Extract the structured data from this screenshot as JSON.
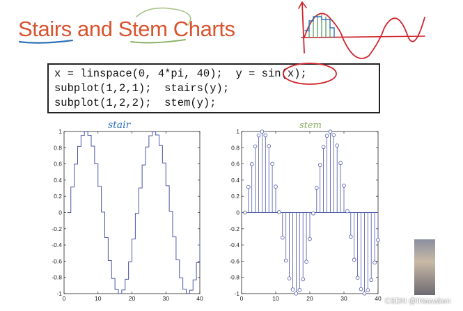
{
  "slide": {
    "title": "Stairs and Stem Charts",
    "code": [
      "x = linspace(0, 4*pi, 40);  y = sin(x);",
      "subplot(1,2,1);  stairs(y);",
      "subplot(1,2,2);  stem(y);"
    ],
    "annotations": {
      "left": "stair",
      "right": "stem"
    },
    "watermark": "CSDN @INawaken"
  },
  "colors": {
    "title": "#d9532e",
    "series": "#4a55a8",
    "ink_blue": "#2f72b8",
    "ink_green": "#8bb36a",
    "ink_red": "#d0242b"
  },
  "chart_data": [
    {
      "type": "line",
      "style": "stairs",
      "x": [
        1,
        2,
        3,
        4,
        5,
        6,
        7,
        8,
        9,
        10,
        11,
        12,
        13,
        14,
        15,
        16,
        17,
        18,
        19,
        20,
        21,
        22,
        23,
        24,
        25,
        26,
        27,
        28,
        29,
        30,
        31,
        32,
        33,
        34,
        35,
        36,
        37,
        38,
        39,
        40
      ],
      "values": [
        0,
        0.3151,
        0.5972,
        0.8162,
        0.9513,
        0.9987,
        0.9531,
        0.8198,
        0.602,
        0.3207,
        0.0054,
        -0.3094,
        -0.5922,
        -0.8126,
        -0.9494,
        -0.9985,
        -0.9549,
        -0.8233,
        -0.6069,
        -0.3263,
        -0.0108,
        0.3038,
        0.5872,
        0.809,
        0.9474,
        0.9982,
        0.9566,
        0.8268,
        0.6118,
        0.3318,
        0.0163,
        -0.2982,
        -0.5822,
        -0.8053,
        -0.9454,
        -0.9979,
        -0.9582,
        -0.8303,
        -0.6167,
        -0.3374
      ],
      "xlim": [
        0,
        40
      ],
      "ylim": [
        -1,
        1
      ],
      "xticks": [
        0,
        10,
        20,
        30,
        40
      ],
      "yticks": [
        -1,
        -0.8,
        -0.6,
        -0.4,
        -0.2,
        0,
        0.2,
        0.4,
        0.6,
        0.8,
        1
      ],
      "ytick_labels": [
        "-1",
        "-0.8",
        "-0.6",
        "-0.4",
        "-0.2",
        "0",
        "0.2",
        "0.4",
        "0.6",
        "0.8",
        "1"
      ]
    },
    {
      "type": "scatter",
      "style": "stem",
      "x": [
        1,
        2,
        3,
        4,
        5,
        6,
        7,
        8,
        9,
        10,
        11,
        12,
        13,
        14,
        15,
        16,
        17,
        18,
        19,
        20,
        21,
        22,
        23,
        24,
        25,
        26,
        27,
        28,
        29,
        30,
        31,
        32,
        33,
        34,
        35,
        36,
        37,
        38,
        39,
        40
      ],
      "values": [
        0,
        0.3151,
        0.5972,
        0.8162,
        0.9513,
        0.9987,
        0.9531,
        0.8198,
        0.602,
        0.3207,
        0.0054,
        -0.3094,
        -0.5922,
        -0.8126,
        -0.9494,
        -0.9985,
        -0.9549,
        -0.8233,
        -0.6069,
        -0.3263,
        -0.0108,
        0.3038,
        0.5872,
        0.809,
        0.9474,
        0.9982,
        0.9566,
        0.8268,
        0.6118,
        0.3318,
        0.0163,
        -0.2982,
        -0.5822,
        -0.8053,
        -0.9454,
        -0.9979,
        -0.9582,
        -0.8303,
        -0.6167,
        -0.3374
      ],
      "xlim": [
        0,
        40
      ],
      "ylim": [
        -1,
        1
      ],
      "xticks": [
        0,
        10,
        20,
        30,
        40
      ],
      "yticks": [
        -1,
        -0.8,
        -0.6,
        -0.4,
        -0.2,
        0,
        0.2,
        0.4,
        0.6,
        0.8,
        1
      ],
      "ytick_labels": [
        "-1",
        "-0.8",
        "-0.6",
        "-0.4",
        "-0.2",
        "0",
        "0.2",
        "0.4",
        "0.6",
        "0.8",
        "1"
      ]
    }
  ]
}
